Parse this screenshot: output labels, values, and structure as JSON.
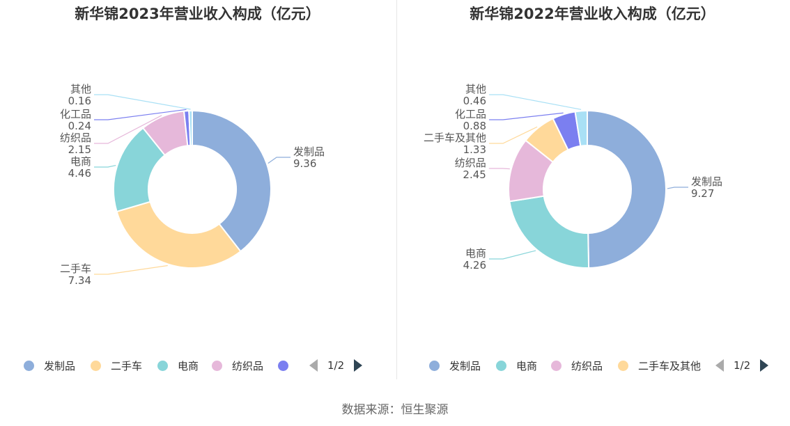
{
  "source": "数据来源：恒生聚源",
  "chart_data": [
    {
      "type": "pie",
      "title": "新华锦2023年营业收入构成（亿元）",
      "slices": [
        {
          "name": "发制品",
          "value": 9.36,
          "value_label": "9.36",
          "color": "#8eaedb"
        },
        {
          "name": "二手车",
          "value": 7.34,
          "value_label": "7.34",
          "color": "#ffd99a"
        },
        {
          "name": "电商",
          "value": 4.46,
          "value_label": "4.46",
          "color": "#88d5d9"
        },
        {
          "name": "纺织品",
          "value": 2.15,
          "value_label": "2.15",
          "color": "#e6b8da"
        },
        {
          "name": "化工品",
          "value": 0.24,
          "value_label": "0.24",
          "color": "#7b7ff0"
        },
        {
          "name": "其他",
          "value": 0.16,
          "value_label": "0.16",
          "color": "#a9e0f5"
        }
      ],
      "legend": {
        "items": [
          "发制品",
          "二手车",
          "电商",
          "纺织品",
          ""
        ],
        "page": "1/2"
      }
    },
    {
      "type": "pie",
      "title": "新华锦2022年营业收入构成（亿元）",
      "slices": [
        {
          "name": "发制品",
          "value": 9.27,
          "value_label": "9.27",
          "color": "#8eaedb"
        },
        {
          "name": "电商",
          "value": 4.26,
          "value_label": "4.26",
          "color": "#88d5d9"
        },
        {
          "name": "纺织品",
          "value": 2.45,
          "value_label": "2.45",
          "color": "#e6b8da"
        },
        {
          "name": "二手车及其他",
          "value": 1.33,
          "value_label": "1.33",
          "color": "#ffd99a"
        },
        {
          "name": "化工品",
          "value": 0.88,
          "value_label": "0.88",
          "color": "#7b7ff0"
        },
        {
          "name": "其他",
          "value": 0.46,
          "value_label": "0.46",
          "color": "#a9e0f5"
        }
      ],
      "legend": {
        "items": [
          "发制品",
          "电商",
          "纺织品",
          "二手车及其他"
        ],
        "page": "1/2"
      }
    }
  ]
}
